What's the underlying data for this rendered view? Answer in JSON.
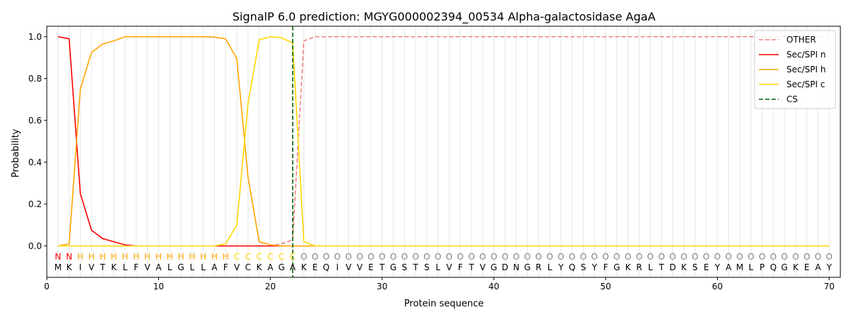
{
  "chart_data": {
    "type": "line",
    "title": "SignalP 6.0 prediction: MGYG000002394_00534 Alpha-galactosidase AgaA",
    "xlabel": "Protein sequence",
    "ylabel": "Probability",
    "xlim": [
      0,
      71
    ],
    "ylim": [
      -0.15,
      1.05
    ],
    "xticks": [
      0,
      10,
      20,
      30,
      40,
      50,
      60,
      70
    ],
    "yticks": [
      0.0,
      0.2,
      0.4,
      0.6,
      0.8,
      1.0
    ],
    "grid": "vertical lines at each residue",
    "legend_position": "top-right",
    "sequence": [
      "M",
      "K",
      "I",
      "V",
      "T",
      "K",
      "L",
      "F",
      "V",
      "A",
      "L",
      "G",
      "L",
      "L",
      "A",
      "F",
      "V",
      "C",
      "K",
      "A",
      "G",
      "A",
      "K",
      "E",
      "Q",
      "I",
      "V",
      "V",
      "E",
      "T",
      "G",
      "S",
      "T",
      "S",
      "L",
      "V",
      "F",
      "T",
      "V",
      "G",
      "D",
      "N",
      "G",
      "R",
      "L",
      "Y",
      "Q",
      "S",
      "Y",
      "F",
      "G",
      "K",
      "R",
      "L",
      "T",
      "D",
      "K",
      "S",
      "E",
      "Y",
      "A",
      "M",
      "L",
      "P",
      "Q",
      "G",
      "K",
      "E",
      "A",
      "Y"
    ],
    "region_labels": [
      "N",
      "N",
      "H",
      "H",
      "H",
      "H",
      "H",
      "H",
      "H",
      "H",
      "H",
      "H",
      "H",
      "H",
      "H",
      "H",
      "C",
      "C",
      "C",
      "C",
      "C",
      "C",
      "O",
      "O",
      "O",
      "O",
      "O",
      "O",
      "O",
      "O",
      "O",
      "O",
      "O",
      "O",
      "O",
      "O",
      "O",
      "O",
      "O",
      "O",
      "O",
      "O",
      "O",
      "O",
      "O",
      "O",
      "O",
      "O",
      "O",
      "O",
      "O",
      "O",
      "O",
      "O",
      "O",
      "O",
      "O",
      "O",
      "O",
      "O",
      "O",
      "O",
      "O",
      "O",
      "O",
      "O",
      "O",
      "O",
      "O",
      "O"
    ],
    "region_colors": {
      "N": "#ff0000",
      "H": "#ffa500",
      "C": "#ffd700",
      "O": "#808080"
    },
    "series": [
      {
        "name": "OTHER",
        "color": "#f08080",
        "dash": "dashed",
        "values": [
          0,
          0,
          0,
          0,
          0,
          0,
          0,
          0,
          0,
          0,
          0,
          0,
          0,
          0,
          0,
          0,
          0,
          0,
          0,
          0,
          0.01,
          0.03,
          0.98,
          1.0,
          1.0,
          1.0,
          1.0,
          1.0,
          1.0,
          1.0,
          1.0,
          1.0,
          1.0,
          1.0,
          1.0,
          1.0,
          1.0,
          1.0,
          1.0,
          1.0,
          1.0,
          1.0,
          1.0,
          1.0,
          1.0,
          1.0,
          1.0,
          1.0,
          1.0,
          1.0,
          1.0,
          1.0,
          1.0,
          1.0,
          1.0,
          1.0,
          1.0,
          1.0,
          1.0,
          1.0,
          1.0,
          1.0,
          1.0,
          1.0,
          1.0,
          1.0,
          1.0,
          1.0,
          1.0,
          1.0
        ]
      },
      {
        "name": "Sec/SPI n",
        "color": "#ff0000",
        "dash": "solid",
        "values": [
          1.0,
          0.99,
          0.25,
          0.075,
          0.035,
          0.02,
          0.005,
          0,
          0,
          0,
          0,
          0,
          0,
          0,
          0,
          0,
          0,
          0,
          0,
          0,
          0,
          0,
          0,
          0,
          0,
          0,
          0,
          0,
          0,
          0,
          0,
          0,
          0,
          0,
          0,
          0,
          0,
          0,
          0,
          0,
          0,
          0,
          0,
          0,
          0,
          0,
          0,
          0,
          0,
          0,
          0,
          0,
          0,
          0,
          0,
          0,
          0,
          0,
          0,
          0,
          0,
          0,
          0,
          0,
          0,
          0,
          0,
          0,
          0,
          0
        ]
      },
      {
        "name": "Sec/SPI h",
        "color": "#ffa500",
        "dash": "solid",
        "values": [
          0,
          0.01,
          0.75,
          0.925,
          0.965,
          0.98,
          1.0,
          1.0,
          1.0,
          1.0,
          1.0,
          1.0,
          1.0,
          1.0,
          0.998,
          0.99,
          0.895,
          0.33,
          0.02,
          0.005,
          0,
          0,
          0,
          0,
          0,
          0,
          0,
          0,
          0,
          0,
          0,
          0,
          0,
          0,
          0,
          0,
          0,
          0,
          0,
          0,
          0,
          0,
          0,
          0,
          0,
          0,
          0,
          0,
          0,
          0,
          0,
          0,
          0,
          0,
          0,
          0,
          0,
          0,
          0,
          0,
          0,
          0,
          0,
          0,
          0,
          0,
          0,
          0,
          0,
          0
        ]
      },
      {
        "name": "Sec/SPI c",
        "color": "#ffd700",
        "dash": "solid",
        "values": [
          0,
          0,
          0,
          0,
          0,
          0,
          0,
          0,
          0,
          0,
          0,
          0,
          0,
          0,
          0,
          0.01,
          0.1,
          0.68,
          0.985,
          1.0,
          0.995,
          0.97,
          0.02,
          0,
          0,
          0,
          0,
          0,
          0,
          0,
          0,
          0,
          0,
          0,
          0,
          0,
          0,
          0,
          0,
          0,
          0,
          0,
          0,
          0,
          0,
          0,
          0,
          0,
          0,
          0,
          0,
          0,
          0,
          0,
          0,
          0,
          0,
          0,
          0,
          0,
          0,
          0,
          0,
          0,
          0,
          0,
          0,
          0,
          0,
          0
        ]
      },
      {
        "name": "CS",
        "color": "#006400",
        "dash": "dashed",
        "x": 22
      }
    ]
  }
}
